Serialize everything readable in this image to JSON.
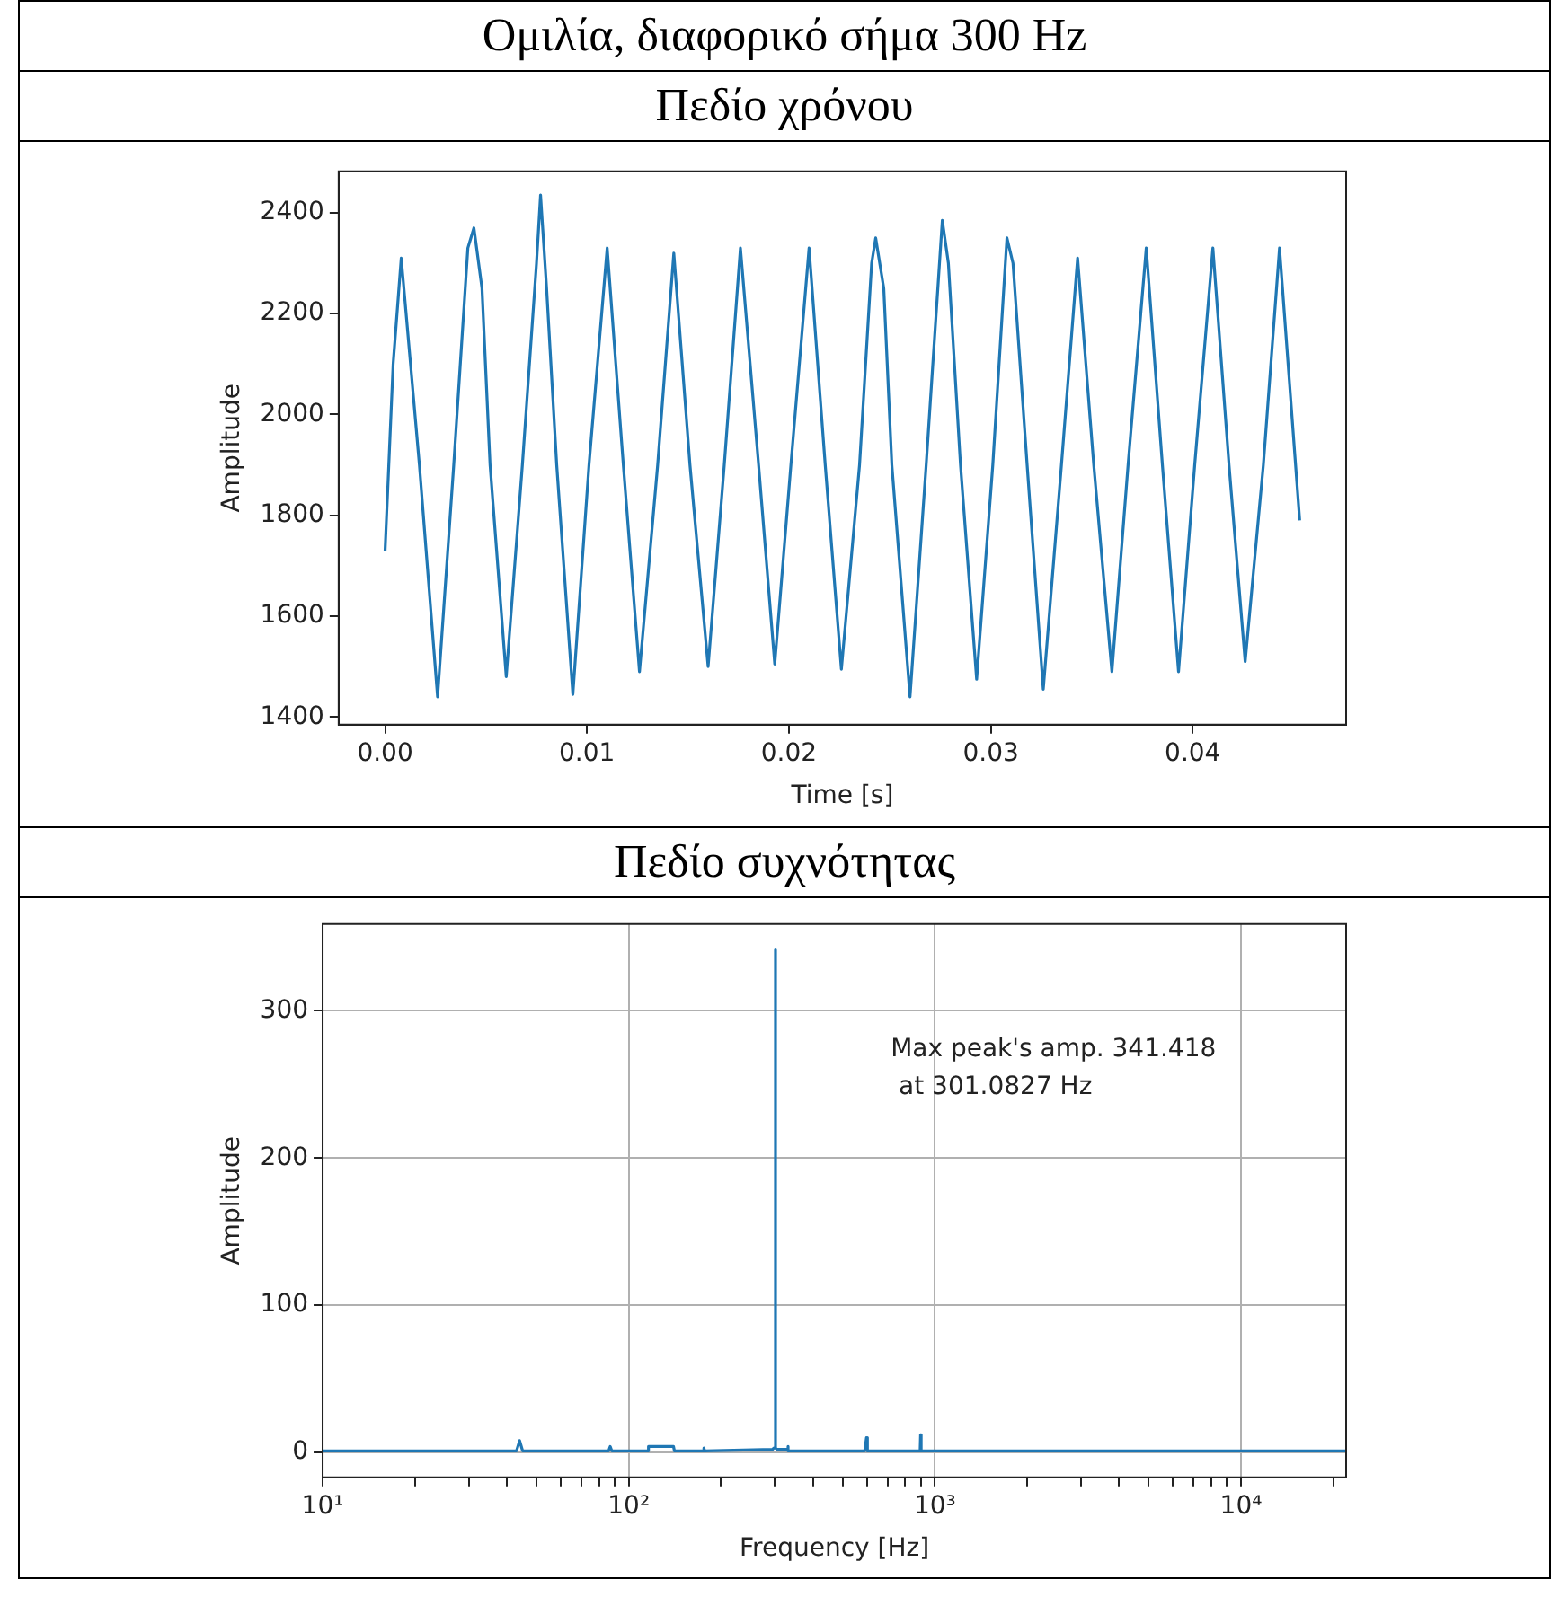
{
  "chart_data": [
    {
      "type": "line",
      "title": "Ομιλία, διαφορικό σήμα 300 Hz",
      "subtitle": "Πεδίο χρόνου",
      "xlabel": "Time [s]",
      "ylabel": "Amplitude",
      "grid": false,
      "marker": "none",
      "line_style": "solid",
      "xlim": [
        -0.0023,
        0.0476
      ],
      "ylim": [
        1385,
        2482
      ],
      "xticks": [
        {
          "value": 0,
          "label": "0.00"
        },
        {
          "value": 0.01,
          "label": "0.01"
        },
        {
          "value": 0.02,
          "label": "0.02"
        },
        {
          "value": 0.03,
          "label": "0.03"
        },
        {
          "value": 0.04,
          "label": "0.04"
        }
      ],
      "yticks": [
        1400,
        1600,
        1800,
        2000,
        2200,
        2400
      ],
      "series": [
        {
          "color": "#1f77b4",
          "x": [
            0,
            0.0004,
            0.0008,
            0.0017,
            0.0026,
            0.0034,
            0.0041,
            0.0044,
            0.0048,
            0.0052,
            0.006,
            0.0068,
            0.0075,
            0.0077,
            0.008,
            0.0085,
            0.0093,
            0.0101,
            0.011,
            0.0118,
            0.0126,
            0.0135,
            0.0143,
            0.0151,
            0.016,
            0.0168,
            0.0176,
            0.0185,
            0.0193,
            0.0201,
            0.021,
            0.0218,
            0.0226,
            0.0235,
            0.0241,
            0.0243,
            0.0247,
            0.0251,
            0.026,
            0.0268,
            0.0276,
            0.0279,
            0.0285,
            0.0293,
            0.0301,
            0.0308,
            0.0311,
            0.0318,
            0.0326,
            0.0335,
            0.0343,
            0.0351,
            0.036,
            0.0368,
            0.0377,
            0.0385,
            0.0393,
            0.0401,
            0.041,
            0.0418,
            0.0426,
            0.0435,
            0.0443,
            0.0453
          ],
          "values": [
            1730,
            2100,
            2310,
            1900,
            1440,
            1900,
            2330,
            2370,
            2250,
            1900,
            1480,
            1900,
            2300,
            2435,
            2250,
            1900,
            1445,
            1900,
            2330,
            1900,
            1490,
            1900,
            2320,
            1900,
            1500,
            1900,
            2330,
            1900,
            1505,
            1900,
            2330,
            1900,
            1495,
            1900,
            2300,
            2350,
            2250,
            1900,
            1440,
            1900,
            2385,
            2300,
            1900,
            1475,
            1900,
            2350,
            2300,
            1900,
            1455,
            1900,
            2310,
            1900,
            1490,
            1900,
            2330,
            1900,
            1490,
            1900,
            2330,
            1900,
            1510,
            1900,
            2330,
            1790
          ]
        }
      ]
    },
    {
      "type": "line",
      "title": "Πεδίο συχνότητας",
      "xlabel": "Frequency [Hz]",
      "ylabel": "Amplitude",
      "grid": true,
      "log": "x",
      "marker": "none",
      "line_style": "solid",
      "xlim": [
        10,
        22050
      ],
      "ylim": [
        -17,
        359
      ],
      "xticks": [
        {
          "value": 10,
          "label": "10¹"
        },
        {
          "value": 20,
          "label": null
        },
        {
          "value": 30,
          "label": null
        },
        {
          "value": 40,
          "label": null
        },
        {
          "value": 50,
          "label": null
        },
        {
          "value": 60,
          "label": null
        },
        {
          "value": 70,
          "label": null
        },
        {
          "value": 80,
          "label": null
        },
        {
          "value": 90,
          "label": null
        },
        {
          "value": 100,
          "label": "10²"
        },
        {
          "value": 200,
          "label": null
        },
        {
          "value": 300,
          "label": null
        },
        {
          "value": 400,
          "label": null
        },
        {
          "value": 500,
          "label": null
        },
        {
          "value": 600,
          "label": null
        },
        {
          "value": 700,
          "label": null
        },
        {
          "value": 800,
          "label": null
        },
        {
          "value": 900,
          "label": null
        },
        {
          "value": 1000,
          "label": "10³"
        },
        {
          "value": 2000,
          "label": null
        },
        {
          "value": 3000,
          "label": null
        },
        {
          "value": 4000,
          "label": null
        },
        {
          "value": 5000,
          "label": null
        },
        {
          "value": 6000,
          "label": null
        },
        {
          "value": 7000,
          "label": null
        },
        {
          "value": 8000,
          "label": null
        },
        {
          "value": 9000,
          "label": null
        },
        {
          "value": 10000,
          "label": "10⁴"
        },
        {
          "value": 20000,
          "label": null
        }
      ],
      "yticks": [
        0,
        100,
        200,
        300
      ],
      "annotations": [
        "Max peak's amp. 341.418\n at 301.0827 Hz"
      ],
      "series": [
        {
          "color": "#1f77b4",
          "x": [
            10,
            43,
            44,
            45,
            86,
            87,
            88,
            115,
            116,
            140,
            141,
            175,
            176,
            177,
            295,
            298,
            300,
            301.0827,
            302,
            305,
            330,
            331,
            332,
            590,
            598,
            602,
            895,
            898,
            902,
            22050
          ],
          "values": [
            1,
            1,
            8,
            1,
            1,
            4,
            1,
            1,
            4,
            4,
            1,
            1,
            3,
            1,
            2,
            3,
            3,
            341.418,
            3,
            2,
            2,
            4,
            1,
            1,
            10,
            1,
            1,
            12,
            1,
            1
          ]
        }
      ]
    }
  ]
}
